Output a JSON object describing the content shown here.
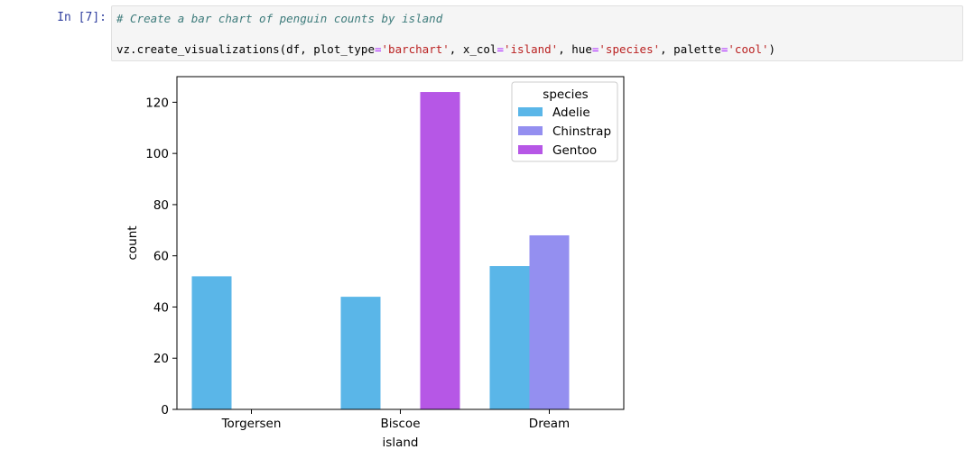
{
  "cell": {
    "prompt": "In [7]:",
    "comment": "# Create a bar chart of penguin counts by island",
    "code": {
      "fn": "vz.create_visualizations(df, plot_type",
      "eq1": "=",
      "plot_type": "'barchart'",
      "sep1": ", x_col",
      "eq2": "=",
      "x_col": "'island'",
      "sep2": ", hue",
      "eq3": "=",
      "hue": "'species'",
      "sep3": ", palette",
      "eq4": "=",
      "palette": "'cool'",
      "close": ")"
    }
  },
  "colors": {
    "Adelie": "#5ab6e8",
    "Chinstrap": "#948ff0",
    "Gentoo": "#b657e6"
  },
  "chart_data": {
    "type": "bar",
    "categories": [
      "Torgersen",
      "Biscoe",
      "Dream"
    ],
    "series": [
      {
        "name": "Adelie",
        "values": [
          52,
          44,
          56
        ]
      },
      {
        "name": "Chinstrap",
        "values": [
          0,
          0,
          68
        ]
      },
      {
        "name": "Gentoo",
        "values": [
          0,
          124,
          0
        ]
      }
    ],
    "xlabel": "island",
    "ylabel": "count",
    "ylim": [
      0,
      130
    ],
    "yticks": [
      0,
      20,
      40,
      60,
      80,
      100,
      120
    ],
    "legend_title": "species",
    "legend_position": "top-right",
    "grid": false
  }
}
